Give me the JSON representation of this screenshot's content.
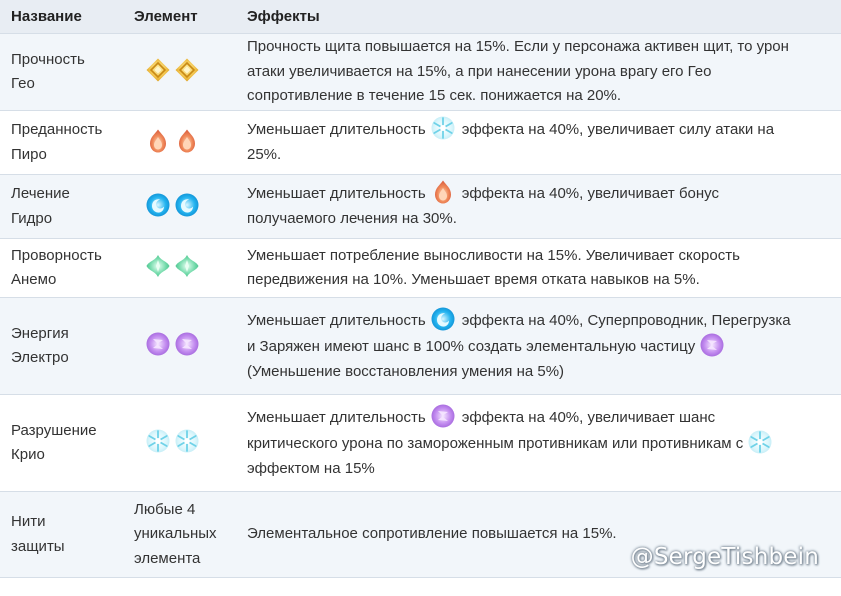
{
  "header": {
    "col_name": "Название",
    "col_element": "Элемент",
    "col_effects": "Эффекты"
  },
  "rows": [
    {
      "name_line1": "Прочность",
      "name_line2": "Гео",
      "element_icon": "geo-icon",
      "effect": {
        "text1": "Прочность щита повышается на 15%. Если у персонажа активен щит, то урон",
        "text2": "атаки увеличивается на 15%, а при нанесении урона врагу его Гео",
        "text3": "сопротивление в течение 15 сек. понижается на 20%."
      }
    },
    {
      "name_line1": "Преданность",
      "name_line2": "Пиро",
      "element_icon": "pyro-icon",
      "effect": {
        "before": "Уменьшает длительность",
        "inline_icon": "cryo-icon",
        "after": "эффекта на 40%, увеличивает силу атаки на",
        "line2": "25%."
      }
    },
    {
      "name_line1": "Лечение",
      "name_line2": "Гидро",
      "element_icon": "hydro-icon",
      "effect": {
        "before": "Уменьшает длительность",
        "inline_icon": "pyro-icon",
        "after": "эффекта на 40%, увеличивает бонус",
        "line2": "получаемого лечения на 30%."
      }
    },
    {
      "name_line1": "Проворность",
      "name_line2": "Анемо",
      "element_icon": "anemo-icon",
      "effect": {
        "text1": "Уменьшает потребление выносливости на 15%. Увеличивает скорость",
        "text2": "передвижения на 10%. Уменьшает время отката навыков на 5%."
      }
    },
    {
      "name_line1": "Энергия",
      "name_line2": "Электро",
      "element_icon": "electro-icon",
      "effect": {
        "before": "Уменьшает длительность",
        "inline_icon": "hydro-icon",
        "after": "эффекта на 40%, Суперпроводник, Перегрузка",
        "line2": "и Заряжен имеют шанс в 100% создать элементальную частицу",
        "line2_icon": "electro-icon",
        "line3": "(Уменьшение восстановления умения на 5%)"
      }
    },
    {
      "name_line1": "Разрушение",
      "name_line2": "Крио",
      "element_icon": "cryo-icon",
      "effect": {
        "before": "Уменьшает длительность",
        "inline_icon": "electro-icon",
        "after": "эффекта на 40%, увеличивает шанс",
        "line2": "критического урона по замороженным противникам или противникам с",
        "line2_icon": "cryo-icon",
        "line3": "эффектом на 15%"
      }
    },
    {
      "name_line1": "Нити",
      "name_line2": "защиты",
      "element_text": [
        "Любые 4",
        "уникальных",
        "элемента"
      ],
      "effect": {
        "text1": "Элементальное сопротивление повышается на 15%."
      }
    }
  ],
  "watermark": "@SergeTishbein",
  "colors": {
    "geo": "#f1c24a",
    "pyro": "#f08a5a",
    "hydro": "#24b4f0",
    "anemo": "#6fd9a8",
    "electro": "#c48ef0",
    "cryo": "#9fe6f5",
    "header_bg": "#e8edf3",
    "stripe_bg": "#f2f6fa",
    "border": "#d6dee7"
  }
}
